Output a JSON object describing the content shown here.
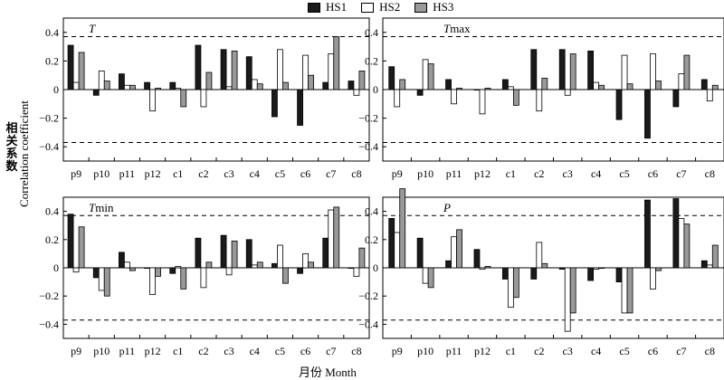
{
  "legend": [
    {
      "name": "HS1",
      "color": "#1a1a1a"
    },
    {
      "name": "HS2",
      "color": "#ffffff"
    },
    {
      "name": "HS3",
      "color": "#999999"
    }
  ],
  "ylabel_zh": "相关系数",
  "ylabel_en": "Correlation coefficient",
  "xlabel": "月份 Month",
  "chart_data": [
    {
      "type": "bar",
      "title_main": "T",
      "title_rest": "",
      "categories": [
        "p9",
        "p10",
        "p11",
        "p12",
        "c1",
        "c2",
        "c3",
        "c4",
        "c5",
        "c6",
        "c7",
        "c8"
      ],
      "ylim": [
        -0.5,
        0.5
      ],
      "yticks": [
        0.4,
        0.2,
        0,
        -0.2,
        -0.4
      ],
      "threshold": 0.37,
      "series": [
        {
          "name": "HS1",
          "values": [
            0.31,
            -0.04,
            0.11,
            0.05,
            0.05,
            0.31,
            0.28,
            0.23,
            -0.19,
            -0.25,
            0.05,
            0.06
          ]
        },
        {
          "name": "HS2",
          "values": [
            0.05,
            0.13,
            0.03,
            -0.15,
            0.01,
            -0.12,
            0.02,
            0.07,
            0.28,
            0.24,
            0.25,
            -0.04
          ]
        },
        {
          "name": "HS3",
          "values": [
            0.26,
            0.06,
            0.03,
            0.01,
            -0.12,
            0.12,
            0.27,
            0.04,
            0.05,
            0.1,
            0.37,
            0.13
          ]
        }
      ]
    },
    {
      "type": "bar",
      "title_main": "T",
      "title_rest": "max",
      "categories": [
        "p9",
        "p10",
        "p11",
        "p12",
        "c1",
        "c2",
        "c3",
        "c4",
        "c5",
        "c6",
        "c7",
        "c8"
      ],
      "ylim": [
        -0.5,
        0.5
      ],
      "yticks": [
        0.4,
        0.2,
        0,
        -0.2,
        -0.4
      ],
      "threshold": 0.37,
      "series": [
        {
          "name": "HS1",
          "values": [
            0.16,
            -0.04,
            0.07,
            0.0,
            0.07,
            0.28,
            0.28,
            0.27,
            -0.21,
            -0.34,
            -0.12,
            0.07
          ]
        },
        {
          "name": "HS2",
          "values": [
            -0.12,
            0.21,
            -0.1,
            -0.17,
            0.02,
            -0.15,
            -0.04,
            0.05,
            0.24,
            0.25,
            0.11,
            -0.08
          ]
        },
        {
          "name": "HS3",
          "values": [
            0.07,
            0.18,
            0.01,
            0.01,
            -0.11,
            0.08,
            0.25,
            0.03,
            0.04,
            0.06,
            0.24,
            0.03
          ]
        }
      ]
    },
    {
      "type": "bar",
      "title_main": "T",
      "title_rest": "min",
      "categories": [
        "p9",
        "p10",
        "p11",
        "p12",
        "c1",
        "c2",
        "c3",
        "c4",
        "c5",
        "c6",
        "c7",
        "c8"
      ],
      "ylim": [
        -0.5,
        0.5
      ],
      "yticks": [
        0.4,
        0.2,
        0,
        -0.2,
        -0.4
      ],
      "threshold": 0.37,
      "series": [
        {
          "name": "HS1",
          "values": [
            0.38,
            -0.07,
            0.11,
            0.0,
            -0.04,
            0.21,
            0.23,
            0.2,
            0.03,
            -0.04,
            0.21,
            0.0
          ]
        },
        {
          "name": "HS2",
          "values": [
            -0.03,
            -0.16,
            0.04,
            -0.19,
            0.01,
            -0.14,
            -0.05,
            0.02,
            0.16,
            0.1,
            0.41,
            -0.06
          ]
        },
        {
          "name": "HS3",
          "values": [
            0.29,
            -0.2,
            -0.02,
            -0.06,
            -0.15,
            0.04,
            0.19,
            0.04,
            -0.11,
            0.04,
            0.43,
            0.14
          ]
        }
      ]
    },
    {
      "type": "bar",
      "title_main": "P",
      "title_rest": "",
      "categories": [
        "p9",
        "p10",
        "p11",
        "p12",
        "c1",
        "c2",
        "c3",
        "c4",
        "c5",
        "c6",
        "c7",
        "c8"
      ],
      "ylim": [
        -0.5,
        0.5
      ],
      "yticks": [
        0.4,
        0.2,
        0,
        -0.2,
        -0.4
      ],
      "threshold": 0.37,
      "series": [
        {
          "name": "HS1",
          "values": [
            0.35,
            0.21,
            0.05,
            0.13,
            -0.08,
            -0.08,
            -0.01,
            -0.09,
            -0.1,
            0.48,
            0.49,
            0.05
          ]
        },
        {
          "name": "HS2",
          "values": [
            0.25,
            -0.11,
            0.22,
            -0.01,
            -0.28,
            0.18,
            -0.45,
            -0.01,
            -0.32,
            -0.15,
            0.35,
            0.02
          ]
        },
        {
          "name": "HS3",
          "values": [
            0.56,
            -0.14,
            0.27,
            0.01,
            -0.21,
            0.03,
            -0.32,
            0.0,
            -0.32,
            -0.02,
            0.31,
            0.16
          ]
        }
      ]
    }
  ]
}
